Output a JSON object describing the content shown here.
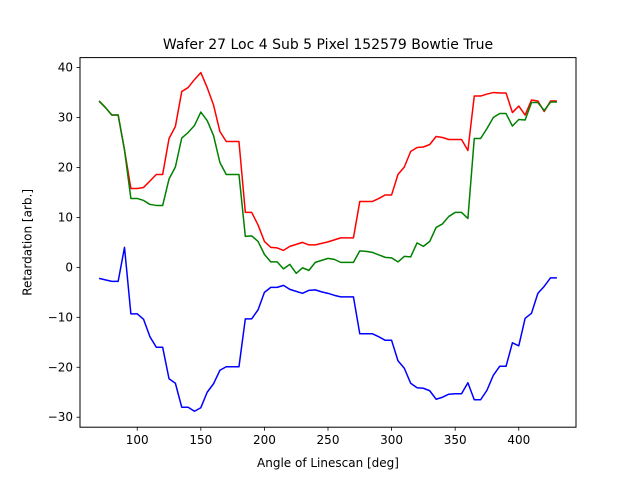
{
  "chart_data": {
    "type": "line",
    "title": "Wafer 27 Loc 4 Sub 5 Pixel 152579 Bowtie True",
    "xlabel": "Angle of Linescan [deg]",
    "ylabel": "Retardation [arb.]",
    "xlim": [
      55,
      445
    ],
    "ylim": [
      -32,
      42
    ],
    "xticks": [
      100,
      150,
      200,
      250,
      300,
      350,
      400
    ],
    "yticks": [
      -30,
      -20,
      -10,
      0,
      10,
      20,
      30,
      40
    ],
    "x": [
      70,
      75,
      80,
      85,
      90,
      95,
      100,
      105,
      110,
      115,
      120,
      125,
      130,
      135,
      140,
      145,
      150,
      155,
      160,
      165,
      170,
      175,
      180,
      185,
      190,
      195,
      200,
      205,
      210,
      215,
      220,
      225,
      230,
      235,
      240,
      245,
      250,
      255,
      260,
      265,
      270,
      275,
      280,
      285,
      290,
      295,
      300,
      305,
      310,
      315,
      320,
      325,
      330,
      335,
      340,
      345,
      350,
      355,
      360,
      365,
      370,
      375,
      380,
      385,
      390,
      395,
      400,
      405,
      410,
      415,
      420,
      425,
      430
    ],
    "series": [
      {
        "color": "#ff0000",
        "values": [
          33.3,
          32,
          30.5,
          30.5,
          23.5,
          15.8,
          15.8,
          16,
          17.3,
          18.6,
          18.6,
          25.8,
          28.2,
          35.2,
          36,
          37.6,
          39,
          36,
          32.5,
          27.2,
          25.2,
          25.2,
          25.2,
          11,
          11,
          8.5,
          5.2,
          4,
          3.9,
          3.4,
          4.2,
          4.6,
          5,
          4.5,
          4.5,
          4.8,
          5.1,
          5.5,
          5.9,
          5.9,
          5.9,
          13.2,
          13.2,
          13.2,
          13.8,
          14.5,
          14.5,
          18.6,
          20.1,
          23.2,
          24,
          24.1,
          24.6,
          26.2,
          26,
          25.6,
          25.6,
          25.6,
          23.4,
          34.3,
          34.3,
          34.7,
          35,
          34.9,
          34.9,
          31,
          32.3,
          30.5,
          33.5,
          33.3,
          31.2,
          33.3,
          33.3
        ]
      },
      {
        "color": "#008000",
        "values": [
          33.3,
          32,
          30.5,
          30.5,
          23.5,
          13.8,
          13.8,
          13.4,
          12.6,
          12.4,
          12.4,
          17.7,
          20.1,
          25.9,
          27,
          28.4,
          31.1,
          29.4,
          26.4,
          21,
          18.6,
          18.6,
          18.6,
          6.2,
          6.3,
          5.2,
          2.6,
          1.1,
          1.1,
          -0.3,
          0.6,
          -1.2,
          -0.1,
          -0.6,
          1,
          1.4,
          1.8,
          1.6,
          1,
          1,
          1,
          3.3,
          3.2,
          3,
          2.5,
          2,
          1.9,
          1.1,
          2.2,
          2.1,
          4.9,
          4.2,
          5.2,
          8,
          8.7,
          10.2,
          11,
          11,
          9.8,
          25.8,
          25.8,
          27.8,
          30,
          30.8,
          30.8,
          28.3,
          29.6,
          29.5,
          33,
          33,
          31.4,
          33.1,
          33.1
        ]
      },
      {
        "color": "#0000ff",
        "values": [
          -2.2,
          -2.5,
          -2.8,
          -2.8,
          4,
          -9.3,
          -9.3,
          -10.4,
          -13.9,
          -16,
          -16,
          -22.3,
          -23.2,
          -28,
          -28,
          -28.8,
          -28.1,
          -25,
          -23.3,
          -20.6,
          -19.9,
          -19.9,
          -19.9,
          -10.3,
          -10.3,
          -8.5,
          -5,
          -4,
          -4,
          -3.6,
          -4.4,
          -4.8,
          -5.2,
          -4.6,
          -4.5,
          -4.9,
          -5.2,
          -5.6,
          -5.9,
          -5.9,
          -5.9,
          -13.3,
          -13.3,
          -13.3,
          -13.9,
          -14.6,
          -14.6,
          -18.7,
          -20.2,
          -23.2,
          -24.1,
          -24.2,
          -24.7,
          -26.4,
          -26,
          -25.4,
          -25.3,
          -25.3,
          -23.1,
          -26.5,
          -26.5,
          -24.6,
          -21.6,
          -19.8,
          -19.8,
          -15.1,
          -15.7,
          -10.2,
          -9.2,
          -5.2,
          -3.8,
          -2.1,
          -2.1
        ]
      }
    ]
  }
}
